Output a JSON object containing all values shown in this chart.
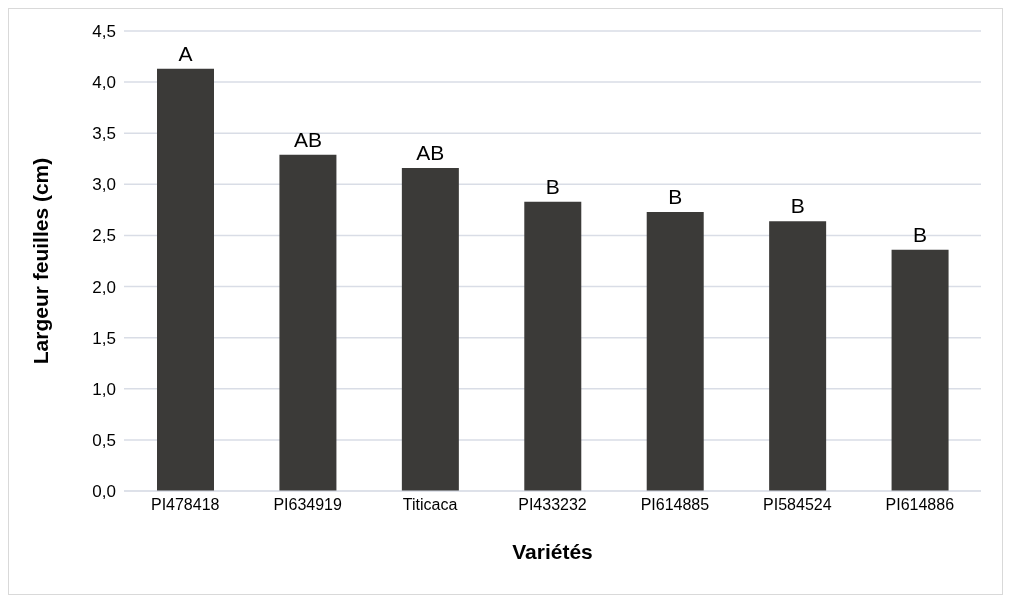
{
  "chart_data": {
    "type": "bar",
    "xlabel": "Variétés",
    "ylabel": "Largeur feuilles (cm)",
    "categories": [
      "PI478418",
      "PI634919",
      "Titicaca",
      "PI433232",
      "PI614885",
      "PI584524",
      "PI614886"
    ],
    "values": [
      4.13,
      3.29,
      3.16,
      2.83,
      2.73,
      2.64,
      2.36
    ],
    "value_labels": [
      "A",
      "AB",
      "AB",
      "B",
      "B",
      "B",
      "B"
    ],
    "color": "#3b3a38",
    "ylim": [
      0,
      4.5
    ],
    "yticks": [
      {
        "value": 0,
        "label": "0,0"
      },
      {
        "value": 0.5,
        "label": "0,5"
      },
      {
        "value": 1,
        "label": "1,0"
      },
      {
        "value": 1.5,
        "label": "1,5"
      },
      {
        "value": 2,
        "label": "2,0"
      },
      {
        "value": 2.5,
        "label": "2,5"
      },
      {
        "value": 3,
        "label": "3,0"
      },
      {
        "value": 3.5,
        "label": "3,5"
      },
      {
        "value": 4,
        "label": "4,0"
      },
      {
        "value": 4.5,
        "label": "4,5"
      }
    ],
    "grid": "y",
    "legend": false
  }
}
